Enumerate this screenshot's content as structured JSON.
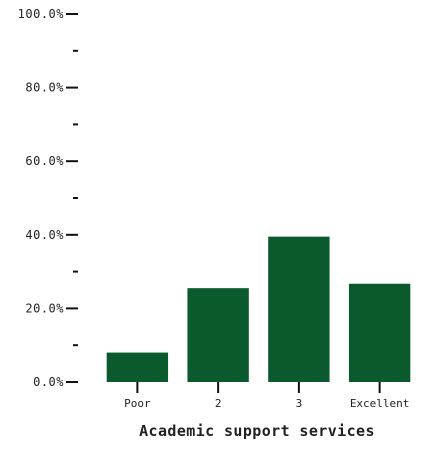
{
  "chart_data": {
    "type": "bar",
    "categories": [
      "Poor",
      "2",
      "3",
      "Excellent"
    ],
    "values": [
      8.0,
      25.5,
      39.5,
      26.7
    ],
    "title": "",
    "xlabel": "Academic support services",
    "ylabel": "",
    "ylim": [
      0,
      100
    ],
    "y_major_ticks": [
      0,
      20,
      40,
      60,
      80,
      100
    ],
    "y_major_tick_labels": [
      "0.0%",
      "20.0%",
      "40.0%",
      "60.0%",
      "80.0%",
      "100.0%"
    ],
    "y_minor_ticks": [
      10,
      30,
      50,
      70,
      90
    ],
    "grid": false,
    "legend": "none",
    "bar_color": "#0b5a2e",
    "axis_color": "#111111"
  }
}
